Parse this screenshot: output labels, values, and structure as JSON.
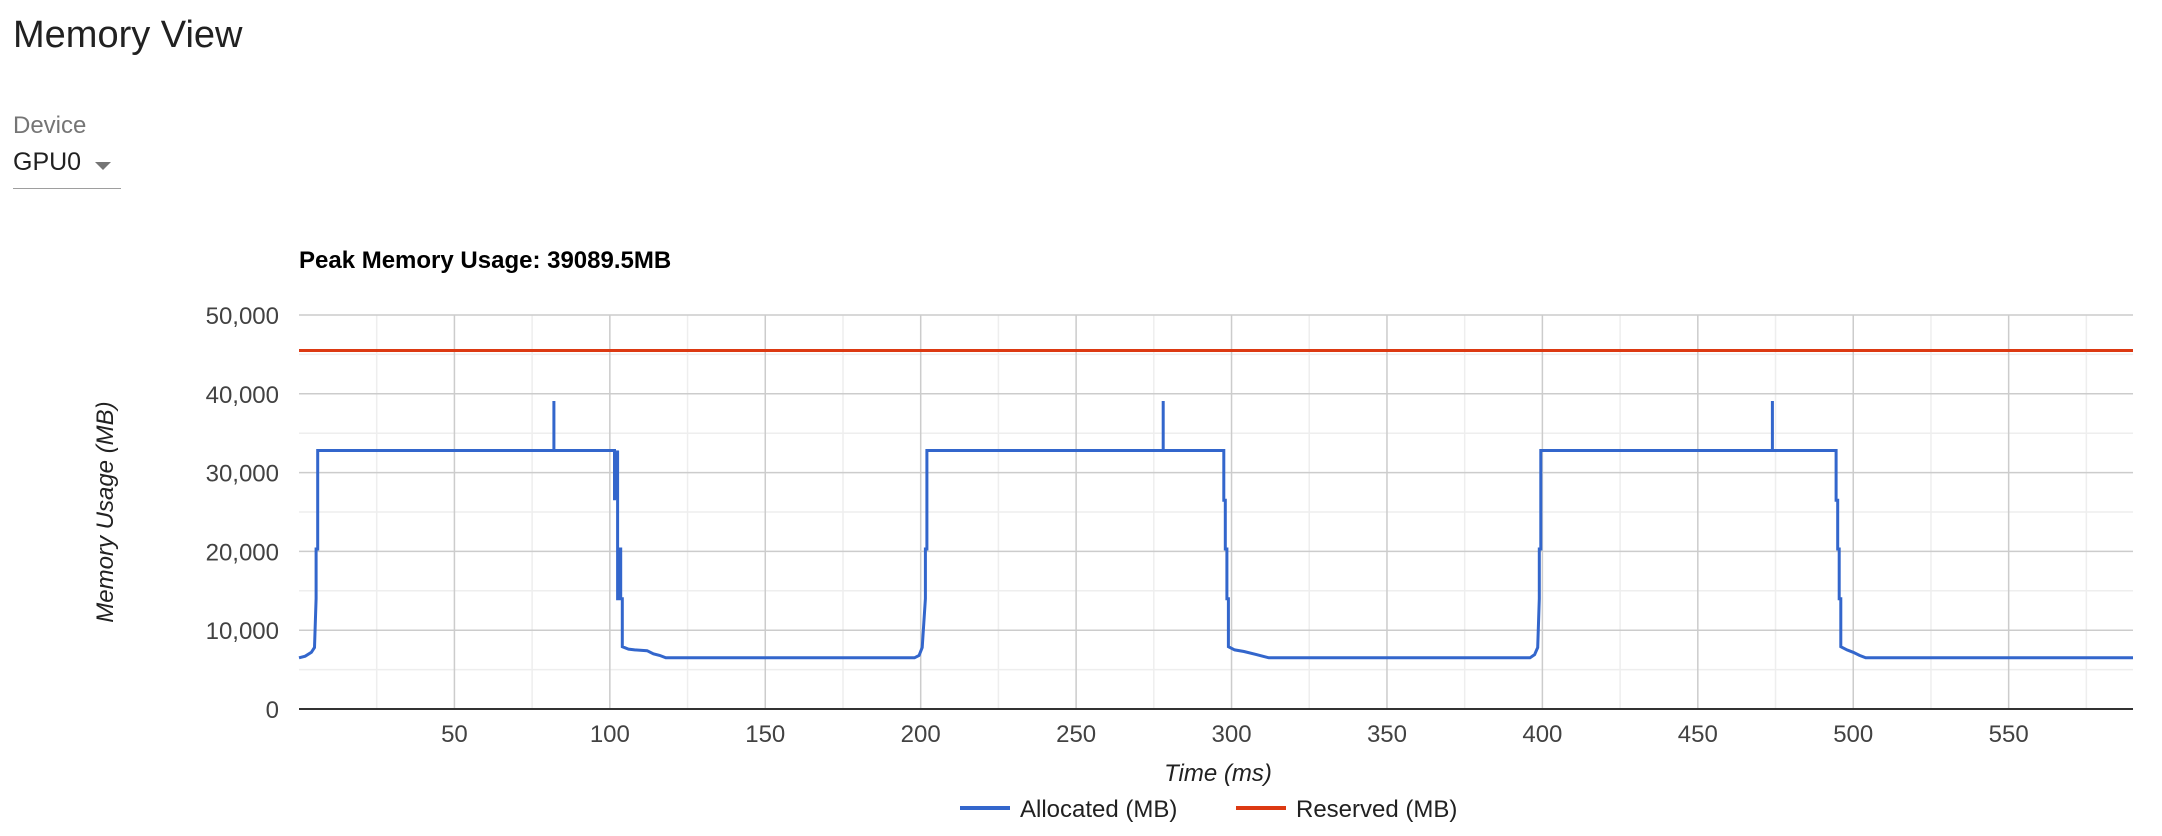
{
  "page": {
    "title": "Memory View",
    "device_label": "Device",
    "device_value": "GPU0",
    "device_options": [
      "GPU0"
    ]
  },
  "chart_data": {
    "type": "line",
    "title": "Peak Memory Usage: 39089.5MB",
    "xlabel": "Time (ms)",
    "ylabel": "Memory Usage (MB)",
    "xlim": [
      0,
      590
    ],
    "ylim": [
      0,
      50000
    ],
    "x_ticks": [
      50,
      100,
      150,
      200,
      250,
      300,
      350,
      400,
      450,
      500,
      550
    ],
    "y_ticks": [
      0,
      10000,
      20000,
      30000,
      40000,
      50000
    ],
    "x_tick_labels": [
      "50",
      "100",
      "150",
      "200",
      "250",
      "300",
      "350",
      "400",
      "450",
      "500",
      "550"
    ],
    "y_tick_labels": [
      "0",
      "10,000",
      "20,000",
      "30,000",
      "40,000",
      "50,000"
    ],
    "grid": true,
    "legend_position": "bottom",
    "series": [
      {
        "name": "Allocated (MB)",
        "color": "#3366cc",
        "x": [
          0,
          2,
          4,
          5,
          5.5,
          5.5,
          6,
          6,
          6.5,
          6.5,
          82,
          82,
          82,
          82,
          101.5,
          101.5,
          102.5,
          102.5,
          103,
          103,
          103.5,
          103.5,
          104,
          104,
          106,
          108,
          112,
          114,
          116,
          118,
          198,
          199.5,
          200.5,
          201.5,
          201.5,
          202,
          202,
          202.5,
          202.5,
          278,
          278,
          278,
          278,
          297.5,
          297.5,
          298,
          298,
          298.5,
          298.5,
          299,
          299,
          301,
          304,
          308,
          310,
          312,
          396,
          397.5,
          398.5,
          399,
          399,
          399.5,
          399.5,
          400,
          400,
          474,
          474,
          474,
          474,
          494.5,
          494.5,
          495,
          495,
          495.5,
          495.5,
          496,
          496,
          498,
          500,
          502,
          504,
          590
        ],
        "y": [
          6500,
          6700,
          7200,
          7800,
          14000,
          20300,
          20300,
          32800,
          32800,
          32800,
          32800,
          39089.5,
          32800,
          32800,
          32800,
          26500,
          32800,
          14000,
          14000,
          20300,
          20300,
          14000,
          14000,
          7900,
          7600,
          7500,
          7400,
          7000,
          6800,
          6500,
          6500,
          6800,
          7800,
          14000,
          20300,
          20300,
          32800,
          32800,
          32800,
          32800,
          39089.5,
          32800,
          32800,
          32800,
          26500,
          26500,
          20300,
          20300,
          14000,
          14000,
          7900,
          7500,
          7300,
          6900,
          6700,
          6500,
          6500,
          6900,
          7800,
          14000,
          20300,
          20300,
          32800,
          32800,
          32800,
          32800,
          39089.5,
          32800,
          32800,
          32800,
          26500,
          26500,
          20300,
          20300,
          14000,
          14000,
          7900,
          7500,
          7200,
          6800,
          6500,
          6500
        ]
      },
      {
        "name": "Reserved (MB)",
        "color": "#dc3912",
        "x": [
          0,
          590
        ],
        "y": [
          45500,
          45500
        ]
      }
    ]
  }
}
